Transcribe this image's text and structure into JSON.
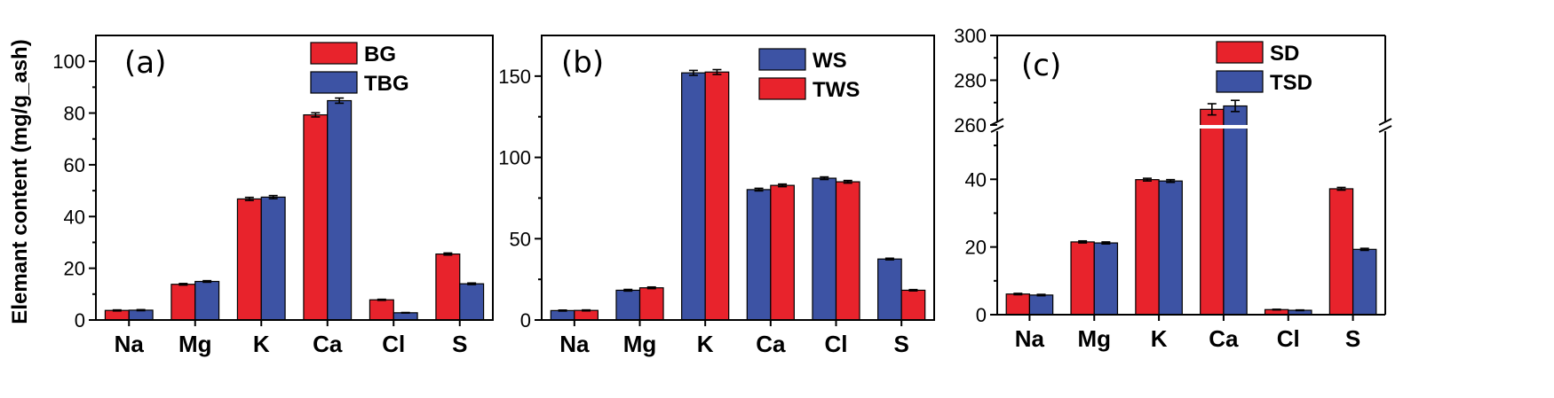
{
  "colors": {
    "red": "#e8232c",
    "blue": "#3d53a4"
  },
  "ylabel": "Elemant content (mg/g_ash)",
  "chart_data": [
    {
      "type": "bar",
      "panel_label": "(a)",
      "categories": [
        "Na",
        "Mg",
        "K",
        "Ca",
        "Cl",
        "S"
      ],
      "ylim": [
        0,
        110
      ],
      "yticks": [
        0,
        20,
        40,
        60,
        80,
        100
      ],
      "legend_position": "top-right",
      "series": [
        {
          "name": "BG",
          "color": "red",
          "values": [
            3.7,
            13.8,
            46.8,
            79.3,
            7.8,
            25.5
          ],
          "err": [
            0.2,
            0.3,
            0.6,
            0.8,
            0.2,
            0.4
          ]
        },
        {
          "name": "TBG",
          "color": "blue",
          "values": [
            3.8,
            14.9,
            47.5,
            84.8,
            2.8,
            14.0
          ],
          "err": [
            0.2,
            0.3,
            0.6,
            1.0,
            0.1,
            0.3
          ]
        }
      ]
    },
    {
      "type": "bar",
      "panel_label": "(b)",
      "categories": [
        "Na",
        "Mg",
        "K",
        "Ca",
        "Cl",
        "S"
      ],
      "ylim": [
        0,
        175
      ],
      "yticks": [
        0,
        50,
        100,
        150
      ],
      "legend_position": "top-right",
      "series": [
        {
          "name": "WS",
          "color": "blue",
          "values": [
            5.8,
            18.3,
            152.0,
            80.2,
            87.2,
            37.5
          ],
          "err": [
            0.3,
            0.5,
            1.5,
            0.8,
            0.8,
            0.5
          ]
        },
        {
          "name": "TWS",
          "color": "red",
          "values": [
            5.9,
            19.8,
            152.5,
            82.8,
            85.0,
            18.3
          ],
          "err": [
            0.3,
            0.5,
            1.5,
            0.8,
            0.8,
            0.4
          ]
        }
      ]
    },
    {
      "type": "bar",
      "panel_label": "(c)",
      "categories": [
        "Na",
        "Mg",
        "K",
        "Ca",
        "Cl",
        "S"
      ],
      "broken_axis": {
        "lower": [
          0,
          55
        ],
        "upper": [
          260,
          300
        ]
      },
      "ylim": [
        0,
        300
      ],
      "yticks_lower": [
        0,
        20,
        40
      ],
      "yticks_upper": [
        260,
        280,
        300
      ],
      "legend_position": "top-right",
      "series": [
        {
          "name": "SD",
          "color": "red",
          "values": [
            6.1,
            21.5,
            39.9,
            267.0,
            1.5,
            37.2
          ],
          "err": [
            0.2,
            0.3,
            0.4,
            2.5,
            0.1,
            0.4
          ]
        },
        {
          "name": "TSD",
          "color": "blue",
          "values": [
            5.8,
            21.2,
            39.5,
            268.5,
            1.3,
            19.3
          ],
          "err": [
            0.2,
            0.3,
            0.4,
            2.5,
            0.1,
            0.3
          ]
        }
      ]
    }
  ]
}
